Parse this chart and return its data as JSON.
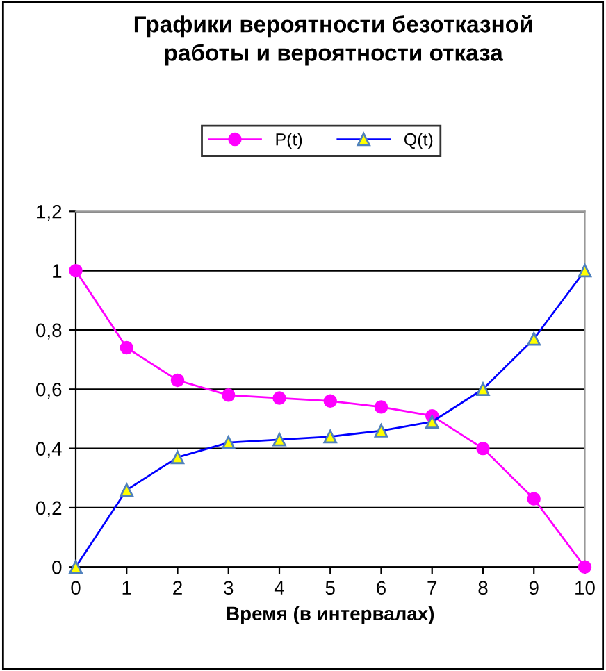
{
  "chart_data": {
    "type": "line",
    "title": "Графики вероятности безотказной\nработы и вероятности отказа",
    "xlabel": "Время (в интервалах)",
    "x": [
      0,
      1,
      2,
      3,
      4,
      5,
      6,
      7,
      8,
      9,
      10
    ],
    "series": [
      {
        "name": "P(t)",
        "color": "#ff00ff",
        "marker": "circle",
        "values": [
          1,
          0.74,
          0.63,
          0.58,
          0.57,
          0.56,
          0.54,
          0.51,
          0.4,
          0.23,
          0
        ]
      },
      {
        "name": "Q(t)",
        "color": "#0000ff",
        "marker": "triangle",
        "values": [
          0,
          0.26,
          0.37,
          0.42,
          0.43,
          0.44,
          0.46,
          0.49,
          0.6,
          0.77,
          1
        ]
      }
    ],
    "xlim": [
      0,
      10
    ],
    "xticks": [
      0,
      1,
      2,
      3,
      4,
      5,
      6,
      7,
      8,
      9,
      10
    ],
    "ylim": [
      0,
      1.2
    ],
    "yticks": [
      {
        "value": 0,
        "label": "0"
      },
      {
        "value": 0.2,
        "label": "0,2"
      },
      {
        "value": 0.4,
        "label": "0,4"
      },
      {
        "value": 0.6,
        "label": "0,6"
      },
      {
        "value": 0.8,
        "label": "0,8"
      },
      {
        "value": 1,
        "label": "1"
      },
      {
        "value": 1.2,
        "label": "1,2"
      }
    ],
    "grid": "y",
    "legend": "top",
    "line_style": "solid"
  }
}
